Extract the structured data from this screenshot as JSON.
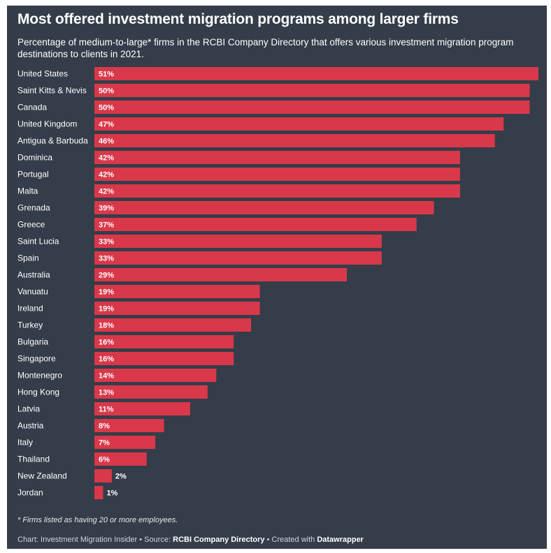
{
  "title": "Most offered investment migration programs among larger firms",
  "subtitle": "Percentage of medium-to-large* firms in the RCBI Company Directory that offers various investment migration program destinations to clients in 2021.",
  "footnote": "* Firms listed as having 20 or more employees.",
  "credits": {
    "prefix": "Chart: Investment Migration Insider • Source: ",
    "source": "RCBI Company Directory",
    "middle": " • Created with ",
    "tool": "Datawrapper"
  },
  "colors": {
    "bar": "#d9384a",
    "background": "#353d4a",
    "text": "#ffffff"
  },
  "chart_data": {
    "type": "bar",
    "orientation": "horizontal",
    "unit": "%",
    "xlim": [
      0,
      51
    ],
    "categories": [
      "United States",
      "Saint Kitts & Nevis",
      "Canada",
      "United Kingdom",
      "Antigua & Barbuda",
      "Dominica",
      "Portugal",
      "Malta",
      "Grenada",
      "Greece",
      "Saint Lucia",
      "Spain",
      "Australia",
      "Vanuatu",
      "Ireland",
      "Turkey",
      "Bulgaria",
      "Singapore",
      "Montenegro",
      "Hong Kong",
      "Latvia",
      "Austria",
      "Italy",
      "Thailand",
      "New Zealand",
      "Jordan"
    ],
    "values": [
      51,
      50,
      50,
      47,
      46,
      42,
      42,
      42,
      39,
      37,
      33,
      33,
      29,
      19,
      19,
      18,
      16,
      16,
      14,
      13,
      11,
      8,
      7,
      6,
      2,
      1
    ],
    "labels": [
      "51%",
      "50%",
      "50%",
      "47%",
      "46%",
      "42%",
      "42%",
      "42%",
      "39%",
      "37%",
      "33%",
      "33%",
      "29%",
      "19%",
      "19%",
      "18%",
      "16%",
      "16%",
      "14%",
      "13%",
      "11%",
      "8%",
      "7%",
      "6%",
      "2%",
      "1%"
    ]
  }
}
